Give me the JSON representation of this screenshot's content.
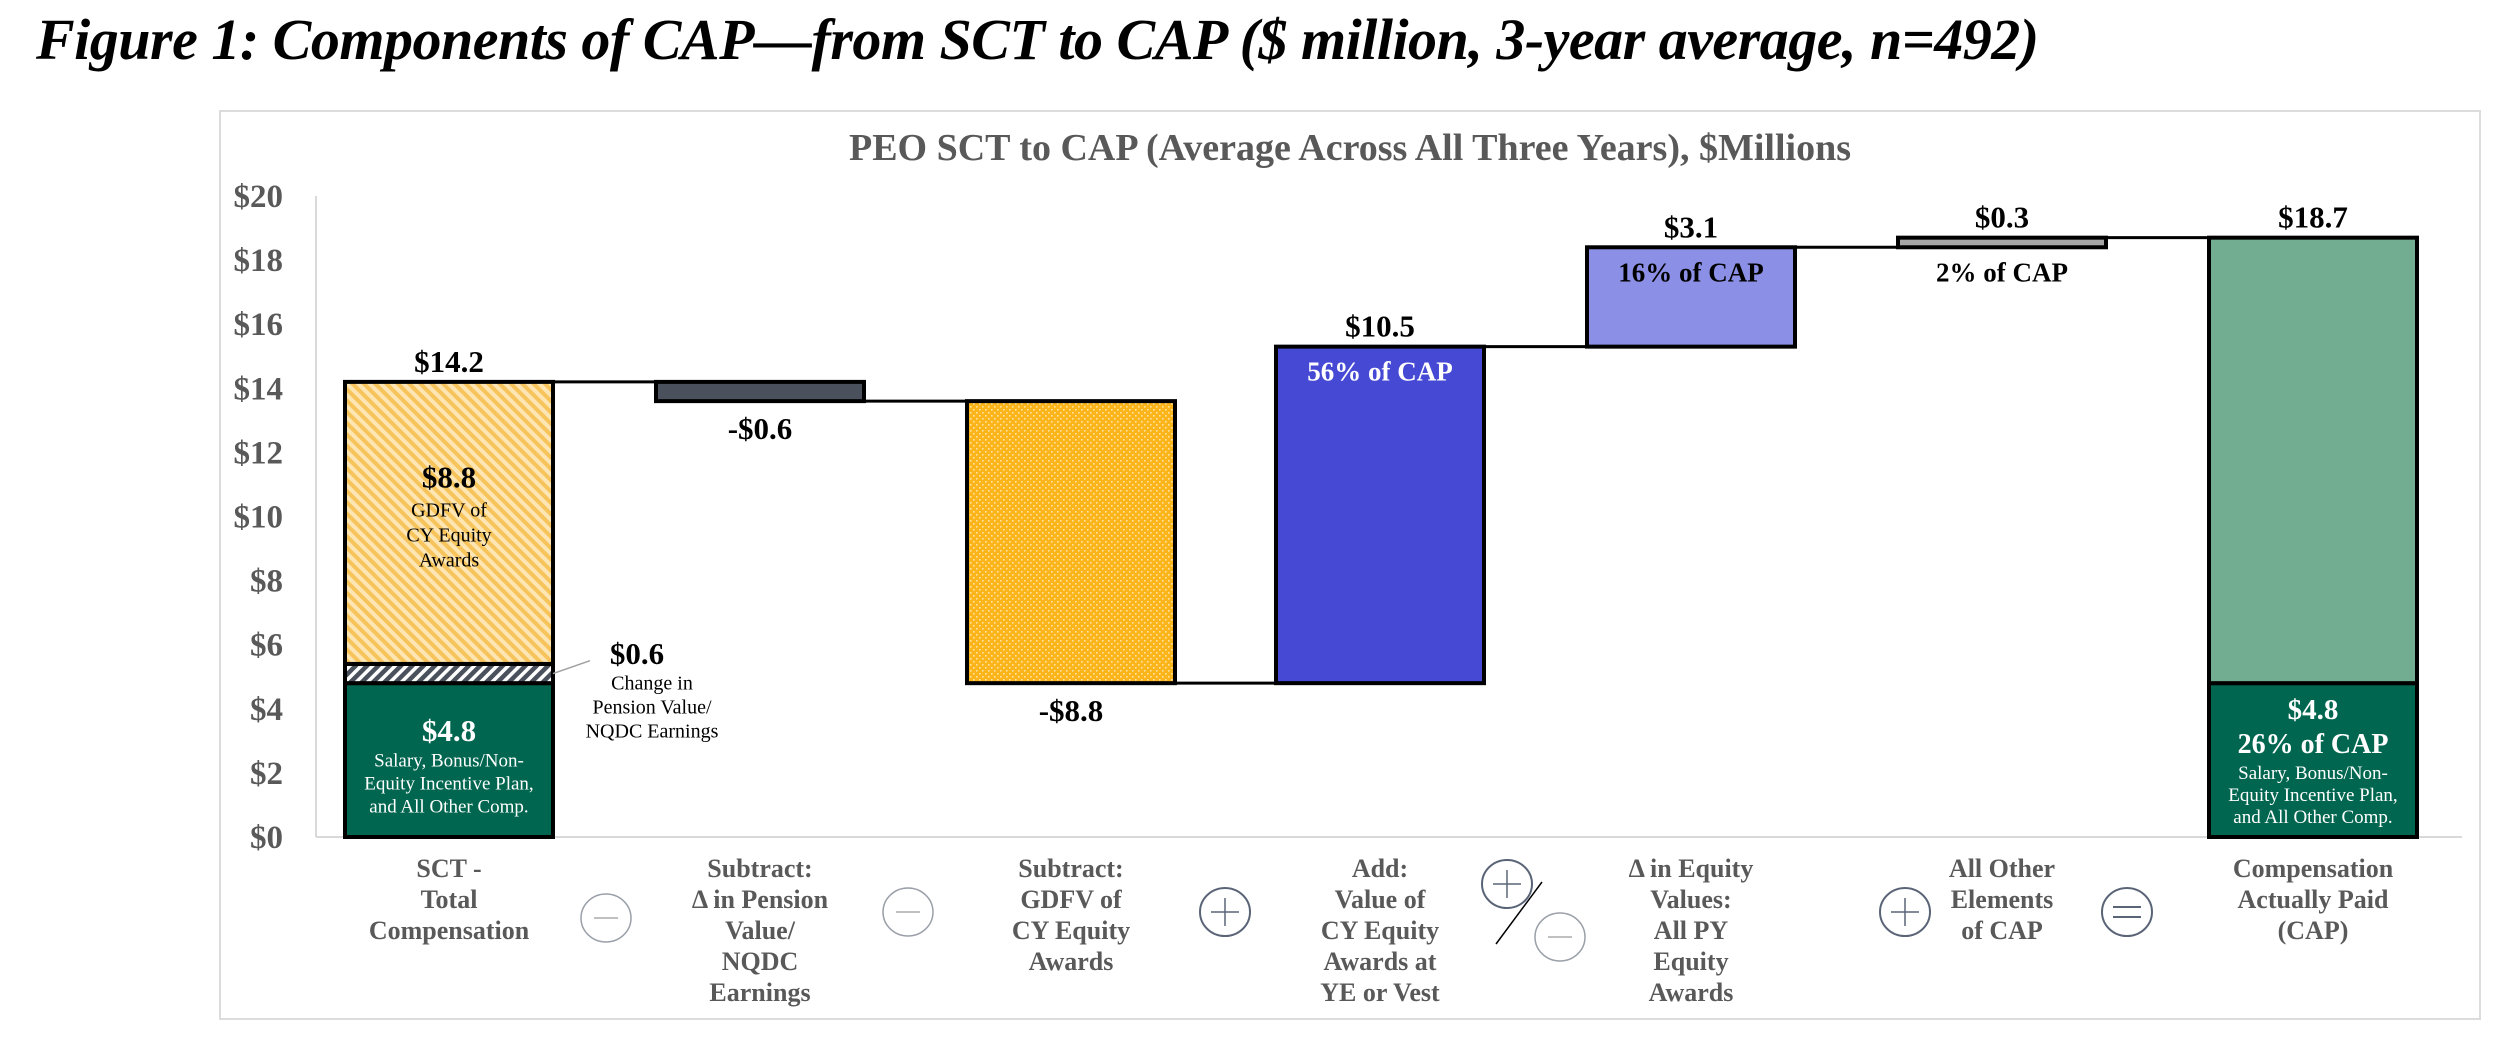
{
  "figure_title": "Figure 1: Components of CAP—from SCT to CAP ($ million, 3-year average, n=492)",
  "colors": {
    "base_green": "#00664f",
    "cap_green": "#72ad91",
    "equity_yellow": "#fbb41a",
    "equity_yellow_light": "#fbd27a",
    "pension_gray": "#4a505c",
    "cy_blue": "#4549d4",
    "py_blue": "#8b90e6",
    "other_gray": "#a6a6a6",
    "op_plus": "#5a6477",
    "op_minus": "#9aa0a8"
  },
  "chart_data": {
    "type": "waterfall",
    "title": "PEO SCT to CAP (Average Across All Three Years), $Millions",
    "xlabel": "",
    "ylabel": "",
    "ylim": [
      0,
      20
    ],
    "yticks": [
      0,
      2,
      4,
      6,
      8,
      10,
      12,
      14,
      16,
      18,
      20
    ],
    "ytick_labels": [
      "$0",
      "$2",
      "$4",
      "$6",
      "$8",
      "$10",
      "$12",
      "$14",
      "$16",
      "$18",
      "$20"
    ],
    "grid": false,
    "categories": [
      "SCT - Total Compensation",
      "Subtract: Δ in Pension Value/ NQDC Earnings",
      "Subtract: GDFV of CY Equity Awards",
      "Add: Value of CY Equity Awards at YE or Vest",
      "Δ in Equity Values: All PY Equity Awards",
      "All Other Elements of CAP",
      "Compensation Actually Paid (CAP)"
    ],
    "category_lines": [
      [
        "SCT -",
        "Total",
        "Compensation"
      ],
      [
        "Subtract:",
        "Δ in Pension",
        "Value/",
        "NQDC",
        "Earnings"
      ],
      [
        "Subtract:",
        "GDFV of",
        "CY Equity",
        "Awards"
      ],
      [
        "Add:",
        "Value of",
        "CY Equity",
        "Awards at",
        "YE or Vest"
      ],
      [
        "Δ in Equity",
        "Values:",
        "All PY",
        "Equity",
        "Awards"
      ],
      [
        "All Other",
        "Elements",
        "of CAP"
      ],
      [
        "Compensation",
        "Actually Paid",
        "(CAP)"
      ]
    ],
    "operators": [
      "minus",
      "minus",
      "plus",
      "plus-or-minus",
      "plus",
      "equals"
    ],
    "bars": [
      {
        "name": "SCT Total Compensation",
        "total": 14.2,
        "total_label": "$14.2",
        "segments": [
          {
            "name": "Salary, Bonus/Non-Equity Incentive Plan, and All Other Comp.",
            "from": 0,
            "to": 4.8,
            "value_label": "$4.8",
            "desc": [
              "Salary, Bonus/Non-",
              "Equity Incentive Plan,",
              "and All Other Comp."
            ],
            "color": "base_green"
          },
          {
            "name": "Change in Pension Value/NQDC Earnings",
            "from": 4.8,
            "to": 5.4,
            "value_label": "$0.6",
            "desc": [
              "Change in",
              "Pension Value/",
              "NQDC Earnings"
            ],
            "color": "pension_gray"
          },
          {
            "name": "GDFV of CY Equity Awards",
            "from": 5.4,
            "to": 14.2,
            "value_label": "$8.8",
            "desc": [
              "GDFV of",
              "CY Equity",
              "Awards"
            ],
            "color": "equity_yellow_light"
          }
        ]
      },
      {
        "name": "Subtract Pension",
        "from": 13.6,
        "to": 14.2,
        "change": -0.6,
        "value_label": "-$0.6",
        "color": "pension_gray"
      },
      {
        "name": "Subtract GDFV",
        "from": 4.8,
        "to": 13.6,
        "change": -8.8,
        "value_label": "-$8.8",
        "color": "equity_yellow"
      },
      {
        "name": "Add CY Equity Value",
        "from": 4.8,
        "to": 15.3,
        "change": 10.5,
        "value_label": "$10.5",
        "pct_label": "56% of CAP",
        "color": "cy_blue"
      },
      {
        "name": "PY Equity Change",
        "from": 15.3,
        "to": 18.4,
        "change": 3.1,
        "value_label": "$3.1",
        "pct_label": "16% of CAP",
        "color": "py_blue"
      },
      {
        "name": "All Other Elements",
        "from": 18.4,
        "to": 18.7,
        "change": 0.3,
        "value_label": "$0.3",
        "pct_label": "2% of CAP",
        "color": "other_gray"
      },
      {
        "name": "CAP",
        "total": 18.7,
        "total_label": "$18.7",
        "segments": [
          {
            "name": "Salary, Bonus/Non-Equity Incentive Plan, and All Other Comp.",
            "from": 0,
            "to": 4.8,
            "value_label": "$4.8",
            "pct_label": "26% of CAP",
            "desc": [
              "Salary, Bonus/Non-",
              "Equity Incentive Plan,",
              "and All Other Comp."
            ],
            "color": "base_green"
          },
          {
            "name": "Equity portion",
            "from": 4.8,
            "to": 18.7,
            "color": "cap_green"
          }
        ]
      }
    ]
  }
}
